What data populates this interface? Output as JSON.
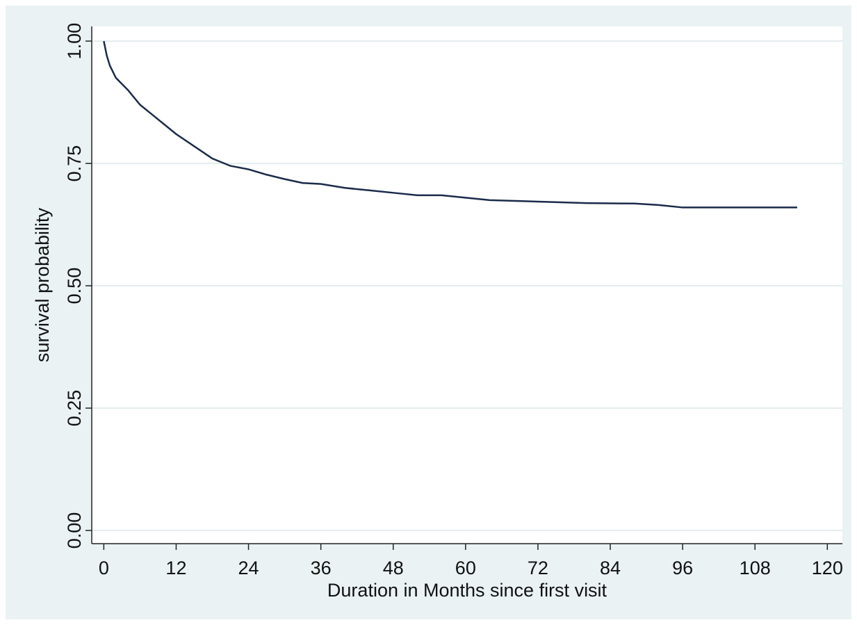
{
  "chart_data": {
    "type": "line",
    "xlabel": "Duration in Months since first visit",
    "ylabel": "survival probability",
    "x": [
      0,
      0.5,
      1,
      2,
      4,
      6,
      8,
      10,
      12,
      15,
      18,
      21,
      24,
      27,
      30,
      33,
      36,
      40,
      44,
      48,
      52,
      56,
      60,
      64,
      72,
      80,
      88,
      92,
      96,
      115
    ],
    "series": [
      {
        "color": "#1a2a4a",
        "values": [
          1.0,
          0.97,
          0.95,
          0.925,
          0.9,
          0.87,
          0.85,
          0.83,
          0.81,
          0.785,
          0.76,
          0.745,
          0.738,
          0.727,
          0.718,
          0.71,
          0.708,
          0.7,
          0.695,
          0.69,
          0.685,
          0.685,
          0.68,
          0.675,
          0.672,
          0.669,
          0.668,
          0.665,
          0.66,
          0.66
        ]
      }
    ],
    "xlim": [
      -2,
      122.5
    ],
    "ylim": [
      -0.027,
      1.03
    ],
    "xticks": [
      0,
      12,
      24,
      36,
      48,
      60,
      72,
      84,
      96,
      108,
      120
    ],
    "yticks": [
      {
        "value": 0,
        "label": "0.00"
      },
      {
        "value": 0.25,
        "label": "0.25"
      },
      {
        "value": 0.5,
        "label": "0.50"
      },
      {
        "value": 0.75,
        "label": "0.75"
      },
      {
        "value": 1,
        "label": "1.00"
      }
    ],
    "grid": true
  }
}
